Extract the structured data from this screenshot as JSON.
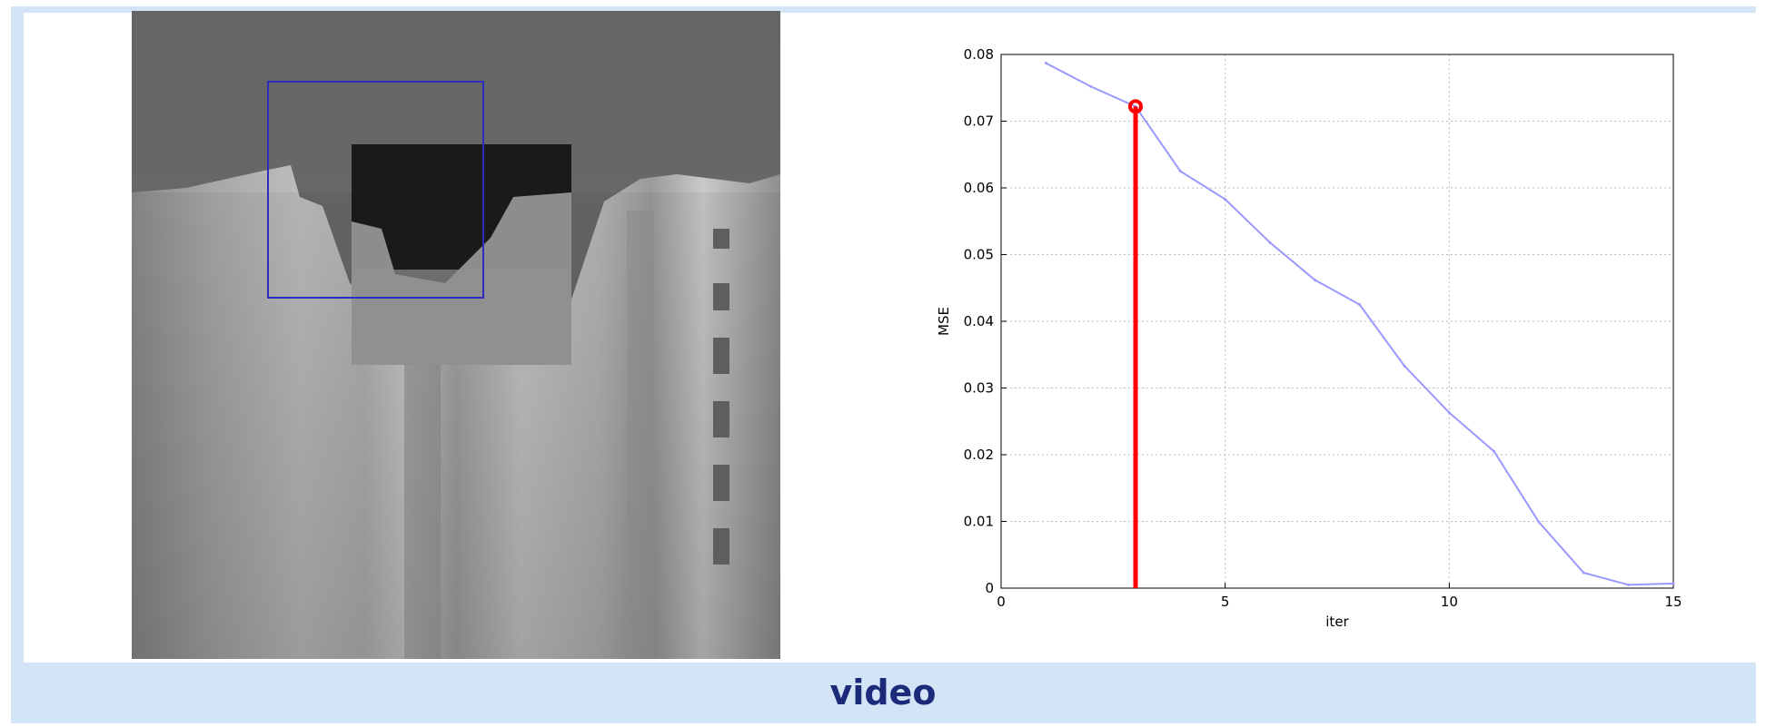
{
  "caption": "video",
  "colors": {
    "frame": "#d3e4f6",
    "caption": "#1c2a7a",
    "curve": "#9999ff",
    "marker": "#ff0000",
    "bounding_box": "#2c2cc0"
  },
  "chart_data": {
    "type": "line",
    "title": "",
    "xlabel": "iter",
    "ylabel": "MSE",
    "xlim": [
      0,
      15
    ],
    "ylim": [
      0,
      0.08
    ],
    "xticks": [
      "0",
      "5",
      "10",
      "15"
    ],
    "yticks": [
      "0",
      "0.01",
      "0.02",
      "0.03",
      "0.04",
      "0.05",
      "0.06",
      "0.07",
      "0.08"
    ],
    "grid": true,
    "series": [
      {
        "x": [
          1,
          2,
          3,
          4,
          5,
          6,
          7,
          8,
          9,
          10,
          11,
          12,
          13,
          14,
          15
        ],
        "y": [
          0.0787,
          0.0752,
          0.0722,
          0.0625,
          0.0583,
          0.0518,
          0.0462,
          0.0425,
          0.0333,
          0.0263,
          0.0205,
          0.0099,
          0.0023,
          0.0005,
          0.0007
        ]
      }
    ],
    "marker": {
      "x": 3,
      "y": 0.0722
    }
  }
}
